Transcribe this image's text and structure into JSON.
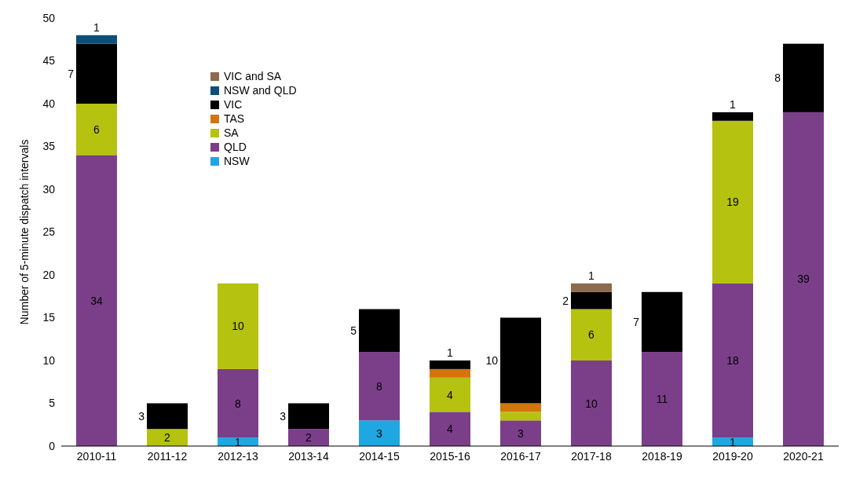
{
  "chart_data": {
    "type": "bar",
    "stacked": true,
    "ylabel": "Number of 5-minute dispatch intervals",
    "categories": [
      "2010-11",
      "2011-12",
      "2012-13",
      "2013-14",
      "2014-15",
      "2015-16",
      "2016-17",
      "2017-18",
      "2018-19",
      "2019-20",
      "2020-21"
    ],
    "ylim": [
      0,
      50
    ],
    "yticks": [
      0,
      5,
      10,
      15,
      20,
      25,
      30,
      35,
      40,
      45,
      50
    ],
    "grid": false,
    "legend": "top left",
    "series": [
      {
        "name": "NSW",
        "color": "#1ea7e1",
        "values": [
          null,
          null,
          1,
          null,
          3,
          null,
          null,
          null,
          null,
          1,
          null
        ],
        "value_labels": [
          null,
          null,
          "1",
          null,
          "3",
          null,
          null,
          null,
          null,
          "1",
          null
        ]
      },
      {
        "name": "QLD",
        "color": "#7b3f8a",
        "values": [
          34,
          null,
          8,
          2,
          8,
          4,
          3,
          10,
          11,
          18,
          39
        ],
        "value_labels": [
          "34",
          null,
          "8",
          "2",
          "8",
          "4",
          "3",
          "10",
          "11",
          "18",
          "39"
        ]
      },
      {
        "name": "SA",
        "color": "#b5c20f",
        "values": [
          6,
          2,
          10,
          null,
          null,
          4,
          1,
          6,
          null,
          19,
          null
        ],
        "value_labels": [
          "6",
          "2",
          "10",
          null,
          null,
          "4",
          null,
          "6",
          null,
          "19",
          null
        ]
      },
      {
        "name": "TAS",
        "color": "#d3740c",
        "values": [
          null,
          null,
          null,
          null,
          null,
          1,
          1,
          null,
          null,
          null,
          null
        ],
        "value_labels": [
          null,
          null,
          null,
          null,
          null,
          null,
          null,
          null,
          null,
          null,
          null
        ]
      },
      {
        "name": "VIC",
        "color": "#000000",
        "values": [
          7,
          3,
          null,
          3,
          5,
          1,
          10,
          2,
          7,
          1,
          8
        ],
        "value_labels": [
          "7",
          "3",
          null,
          "3",
          "5",
          "1",
          "10",
          "2",
          "7",
          "1",
          "8"
        ]
      },
      {
        "name": "NSW and QLD",
        "color": "#0d4f7a",
        "values": [
          1,
          null,
          null,
          null,
          null,
          null,
          null,
          null,
          null,
          null,
          null
        ],
        "value_labels": [
          "1",
          null,
          null,
          null,
          null,
          null,
          null,
          null,
          null,
          null,
          null
        ]
      },
      {
        "name": "VIC and SA",
        "color": "#8b6a4d",
        "values": [
          null,
          null,
          null,
          null,
          null,
          null,
          null,
          1,
          null,
          null,
          null
        ],
        "value_labels": [
          null,
          null,
          null,
          null,
          null,
          null,
          null,
          "1",
          null,
          null,
          null
        ]
      }
    ]
  }
}
